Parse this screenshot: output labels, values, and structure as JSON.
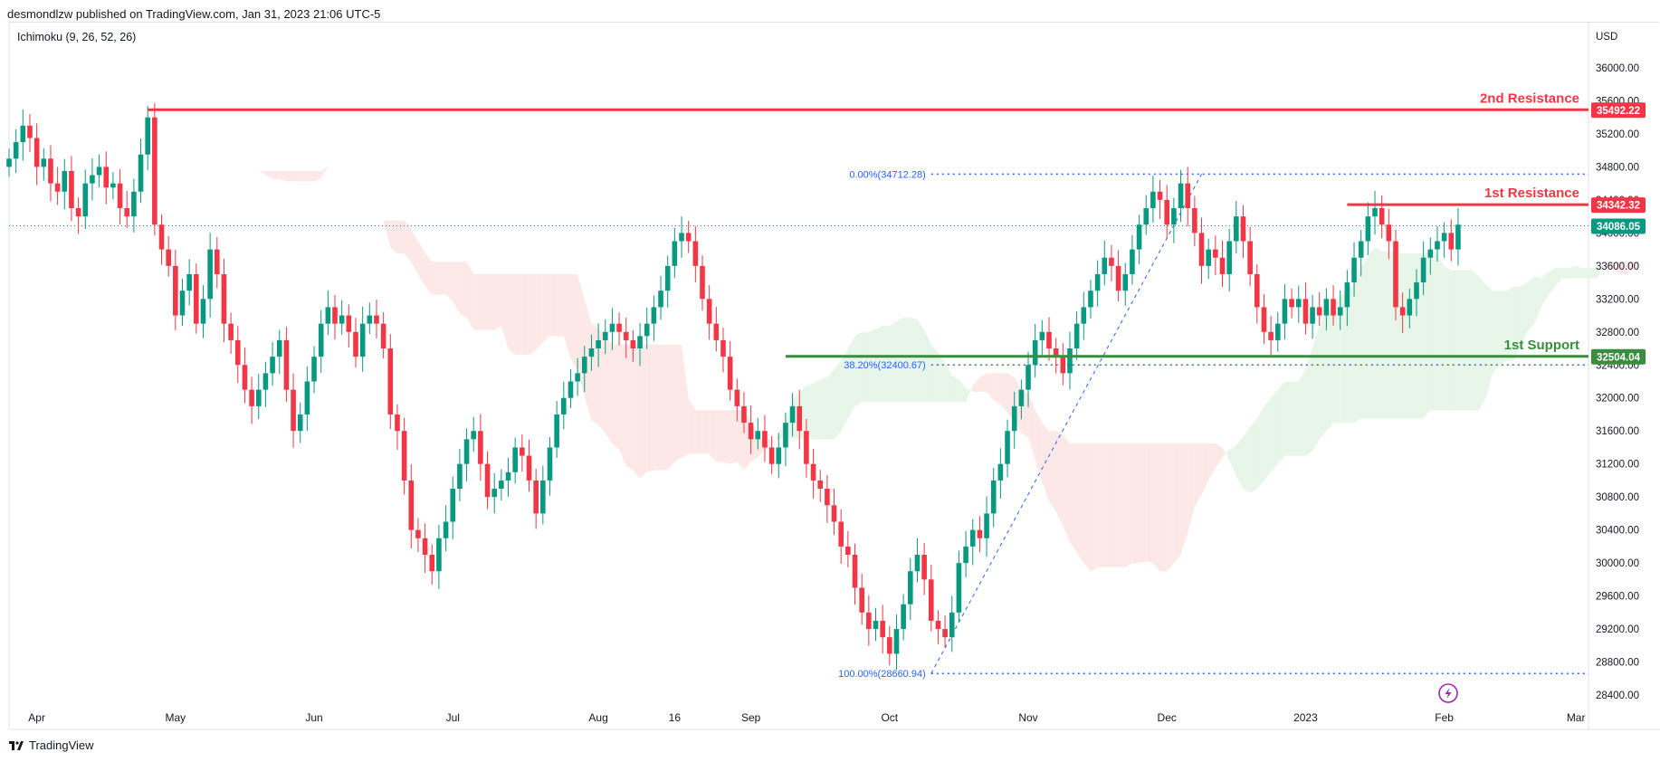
{
  "header": {
    "published": "desmondlzw published on TradingView.com, Jan 31, 2023 21:06 UTC-5",
    "indicator": "Ichimoku (9, 26, 52, 26)"
  },
  "footer": {
    "brand": "TradingView"
  },
  "chart_data": {
    "type": "candlestick",
    "currency": "USD",
    "ylim": [
      28200,
      36400
    ],
    "yticks": [
      28400,
      28800,
      29200,
      29600,
      30000,
      30400,
      30800,
      31200,
      31600,
      32000,
      32400,
      32800,
      33200,
      33600,
      34000,
      34400,
      34800,
      35200,
      35600,
      36000
    ],
    "ytick_labels": [
      "28400.00",
      "28800.00",
      "29200.00",
      "29600.00",
      "30000.00",
      "30400.00",
      "30800.00",
      "31200.00",
      "31600.00",
      "32000.00",
      "32400.00",
      "32800.00",
      "33200.00",
      "33600.00",
      "34000.00",
      "34400.00",
      "34800.00",
      "35200.00",
      "35600.00",
      "36000.00"
    ],
    "x_labels": [
      {
        "label": "Apr",
        "bar": 4
      },
      {
        "label": "May",
        "bar": 24
      },
      {
        "label": "Jun",
        "bar": 44
      },
      {
        "label": "Jul",
        "bar": 64
      },
      {
        "label": "Aug",
        "bar": 85
      },
      {
        "label": "16",
        "bar": 96
      },
      {
        "label": "Sep",
        "bar": 107
      },
      {
        "label": "Oct",
        "bar": 127
      },
      {
        "label": "Nov",
        "bar": 147
      },
      {
        "label": "Dec",
        "bar": 167
      },
      {
        "label": "2023",
        "bar": 187
      },
      {
        "label": "Feb",
        "bar": 207
      },
      {
        "label": "Mar",
        "bar": 226
      }
    ],
    "close_path": [
      34900,
      35100,
      35300,
      35150,
      34800,
      34900,
      34600,
      34500,
      34750,
      34300,
      34200,
      34600,
      34700,
      34800,
      34550,
      34600,
      34300,
      34200,
      34500,
      34950,
      35400,
      34100,
      33800,
      33600,
      33000,
      33300,
      33500,
      32900,
      33200,
      33800,
      33500,
      32900,
      32700,
      32400,
      32100,
      31900,
      32100,
      32300,
      32500,
      32700,
      32100,
      31600,
      31800,
      32200,
      32500,
      32900,
      33100,
      32900,
      33000,
      32800,
      32500,
      32900,
      33000,
      32900,
      32600,
      31800,
      31600,
      31000,
      30400,
      30300,
      30100,
      29900,
      30300,
      30500,
      30900,
      31200,
      31500,
      31600,
      31200,
      30800,
      30900,
      31000,
      31100,
      31400,
      31300,
      31000,
      30600,
      31000,
      31400,
      31800,
      32000,
      32200,
      32300,
      32500,
      32600,
      32700,
      32800,
      32900,
      32800,
      32700,
      32600,
      32750,
      32900,
      33100,
      33300,
      33600,
      33900,
      34000,
      33900,
      33600,
      33200,
      32900,
      32700,
      32500,
      32100,
      31900,
      31700,
      31500,
      31600,
      31400,
      31200,
      31400,
      31700,
      31900,
      31600,
      31200,
      31000,
      30900,
      30700,
      30500,
      30200,
      30100,
      29700,
      29400,
      29200,
      29300,
      29100,
      28900,
      29200,
      29500,
      29900,
      30100,
      29800,
      29300,
      29200,
      29100,
      29400,
      30000,
      30200,
      30400,
      30300,
      30600,
      31000,
      31200,
      31600,
      31900,
      32100,
      32400,
      32700,
      32800,
      32600,
      32500,
      32300,
      32600,
      32900,
      33100,
      33300,
      33500,
      33700,
      33600,
      33300,
      33500,
      33800,
      34100,
      34300,
      34500,
      34400,
      34100,
      34300,
      34600,
      34300,
      34000,
      33600,
      33800,
      33700,
      33500,
      33900,
      34200,
      33900,
      33500,
      33100,
      32800,
      32700,
      32900,
      33200,
      33100,
      33200,
      32900,
      33100,
      33000,
      33200,
      33000,
      33100,
      33400,
      33700,
      33900,
      34200,
      34300,
      34100,
      33900,
      33100,
      33000,
      33200,
      33400,
      33700,
      33800,
      33900,
      34000,
      33800,
      34100
    ],
    "levels": [
      {
        "name": "2nd Resistance",
        "value": "35492.22",
        "price": 35492.22,
        "color": "#f23645",
        "from_bar": 20
      },
      {
        "name": "1st Resistance",
        "value": "34342.32",
        "price": 34342.32,
        "color": "#f23645",
        "from_bar": 193
      },
      {
        "name": "1st Support",
        "value": "32504.04",
        "price": 32504.04,
        "color": "#388e3c",
        "from_bar": 112
      }
    ],
    "last_price": {
      "value": "34086.05",
      "price": 34086.05,
      "color": "#089981"
    },
    "fibonacci": {
      "from": {
        "bar": 133,
        "price": 28660.94
      },
      "to": {
        "bar": 172,
        "price": 34712.28
      },
      "levels": [
        {
          "label": "0.00%(34712.28)",
          "price": 34712.28
        },
        {
          "label": "38.20%(32400.67)",
          "price": 32400.67
        },
        {
          "label": "100.00%(28660.94)",
          "price": 28660.94
        }
      ]
    },
    "colors": {
      "up": "#089981",
      "down": "#f23645",
      "kumo_bull": "#e8f5e9",
      "kumo_bear": "#fde8e8",
      "grid": "#f0f3fa",
      "fib": "#2962ff"
    }
  }
}
